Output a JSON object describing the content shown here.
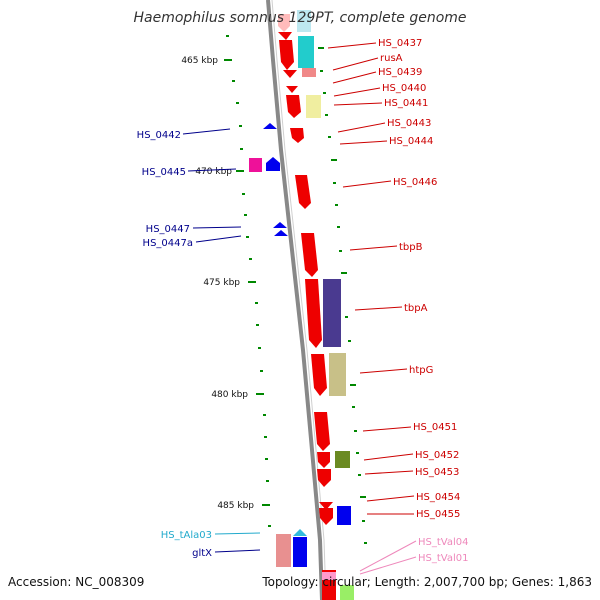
{
  "title": "Haemophilus somnus 129PT, complete genome",
  "accession_text": "Accession: NC_008309",
  "topology_text": "Topology: circular; Length: 2,007,700 bp; Genes: 1,863",
  "kbp_ticks": [
    {
      "label": "465 kbp"
    },
    {
      "label": "470 kbp"
    },
    {
      "label": "475 kbp"
    },
    {
      "label": "480 kbp"
    },
    {
      "label": "485 kbp"
    }
  ],
  "colors": {
    "forward_gene": "#ff0000",
    "reverse_gene": "#0000ff",
    "trna": "#33bbdd",
    "trna_right": "#ee88bb",
    "axis": "#888888",
    "tick": "#008800"
  },
  "left_labels": [
    {
      "text": "HS_0442",
      "color": "#00008b"
    },
    {
      "text": "HS_0445",
      "color": "#00008b"
    },
    {
      "text": "HS_0447",
      "color": "#00008b"
    },
    {
      "text": "HS_0447a",
      "color": "#00008b"
    },
    {
      "text": "HS_tAla03",
      "color": "#22aacc"
    },
    {
      "text": "gltX",
      "color": "#00008b"
    }
  ],
  "right_labels": [
    {
      "text": "HS_0437",
      "color": "#cc0000"
    },
    {
      "text": "rusA",
      "color": "#cc0000"
    },
    {
      "text": "HS_0439",
      "color": "#cc0000"
    },
    {
      "text": "HS_0440",
      "color": "#cc0000"
    },
    {
      "text": "HS_0441",
      "color": "#cc0000"
    },
    {
      "text": "HS_0443",
      "color": "#cc0000"
    },
    {
      "text": "HS_0444",
      "color": "#cc0000"
    },
    {
      "text": "HS_0446",
      "color": "#cc0000"
    },
    {
      "text": "tbpB",
      "color": "#cc0000"
    },
    {
      "text": "tbpA",
      "color": "#cc0000"
    },
    {
      "text": "htpG",
      "color": "#cc0000"
    },
    {
      "text": "HS_0451",
      "color": "#cc0000"
    },
    {
      "text": "HS_0452",
      "color": "#cc0000"
    },
    {
      "text": "HS_0453",
      "color": "#cc0000"
    },
    {
      "text": "HS_0454",
      "color": "#cc0000"
    },
    {
      "text": "HS_0455",
      "color": "#cc0000"
    },
    {
      "text": "HS_tVal04",
      "color": "#ee88bb"
    },
    {
      "text": "HS_tVal01",
      "color": "#ee88bb"
    }
  ]
}
